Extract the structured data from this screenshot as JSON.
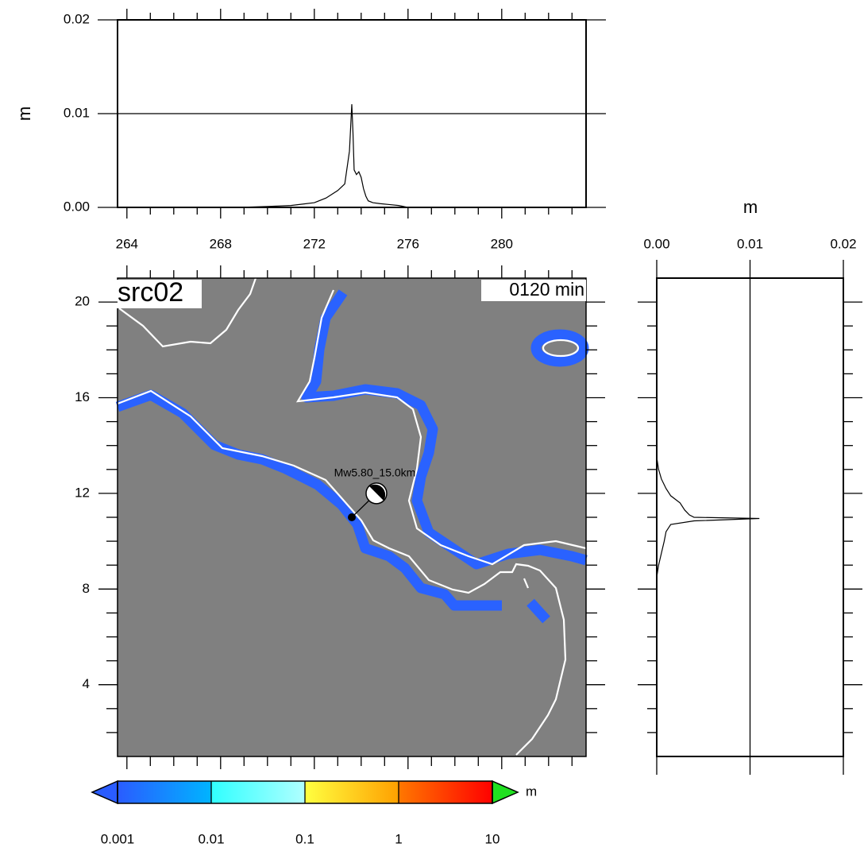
{
  "chart_data": [
    {
      "type": "line",
      "ylabel": "m",
      "x": [
        263.6,
        268.8,
        270,
        271,
        272,
        272.5,
        273,
        273.3,
        273.5,
        273.6,
        273.65,
        273.7,
        273.8,
        273.9,
        274.0,
        274.1,
        274.2,
        274.3,
        274.5,
        274.8,
        275.2,
        275.6,
        276,
        283.6
      ],
      "values": [
        0,
        0,
        0.0001,
        0.0002,
        0.0005,
        0.001,
        0.0018,
        0.0025,
        0.006,
        0.011,
        0.008,
        0.004,
        0.0035,
        0.0038,
        0.0032,
        0.002,
        0.0012,
        0.0007,
        0.0005,
        0.0004,
        0.0003,
        0.0002,
        0,
        0
      ],
      "color": "#000000",
      "xlim": [
        263.6,
        283.6
      ],
      "xticks": [
        264,
        268,
        272,
        276,
        280
      ],
      "xticks_minor": [
        265,
        266,
        267,
        269,
        270,
        271,
        273,
        274,
        275,
        277,
        278,
        279,
        281,
        282,
        283
      ],
      "ylim": [
        0,
        0.02
      ],
      "yticks": [
        {
          "value": 0,
          "label": "0.00"
        },
        0.01,
        0.02
      ],
      "grid": true
    },
    {
      "type": "profile",
      "xlabel": "m",
      "y": [
        1,
        8.5,
        9,
        9.5,
        10,
        10.4,
        10.7,
        10.85,
        10.95,
        11.0,
        11.1,
        11.3,
        11.6,
        11.9,
        12.2,
        12.6,
        13,
        13.5,
        21
      ],
      "values": [
        0,
        0,
        0.0002,
        0.0005,
        0.0008,
        0.001,
        0.0015,
        0.004,
        0.011,
        0.004,
        0.0035,
        0.003,
        0.0025,
        0.0015,
        0.001,
        0.0005,
        0.0002,
        0,
        0
      ],
      "color": "#000000",
      "xlim": [
        0,
        0.02
      ],
      "xticks": [
        {
          "value": 0,
          "label": "0.00"
        },
        0.01,
        0.02
      ],
      "ylim": [
        1,
        21
      ],
      "yticks": [
        4,
        8,
        12,
        16,
        20
      ],
      "yticks_minor": [
        2,
        3,
        5,
        6,
        7,
        9,
        10,
        11,
        13,
        14,
        15,
        17,
        18,
        19
      ],
      "grid": true
    },
    {
      "type": "map",
      "label": "src02",
      "time": "0120 min",
      "xlim": [
        263.6,
        283.6
      ],
      "xticks": [
        264,
        268,
        272,
        276,
        280
      ],
      "xticks_minor": [
        265,
        266,
        267,
        269,
        270,
        271,
        273,
        274,
        275,
        277,
        278,
        279,
        281,
        282,
        283
      ],
      "ylim": [
        1,
        21
      ],
      "yticks": [
        4,
        8,
        12,
        16,
        20
      ],
      "yticks_minor": [
        2,
        3,
        5,
        6,
        7,
        9,
        10,
        11,
        13,
        14,
        15,
        17,
        18,
        19
      ],
      "epicenter": {
        "x": 273.6,
        "y": 11
      },
      "mechanism": {
        "x": 274.65,
        "y": 12,
        "label": "Mw5.80_15.0km"
      },
      "land_color": "#808080",
      "wave_color": "#2a62ff",
      "coast_color": "#ffffff"
    },
    {
      "type": "colorbar",
      "label": "m",
      "log": true,
      "xlim": [
        0.001,
        10
      ],
      "xticks": [
        0.001,
        0.01,
        0.1,
        1,
        10
      ],
      "segment_colors": [
        [
          "#2a5cff",
          "#00b4ff"
        ],
        [
          "#30ffff",
          "#b0ffff"
        ],
        [
          "#ffff40",
          "#ffa000"
        ],
        [
          "#ff7800",
          "#ff0000"
        ]
      ],
      "under_color": "#2a5cff",
      "over_color": "#20e020"
    }
  ]
}
